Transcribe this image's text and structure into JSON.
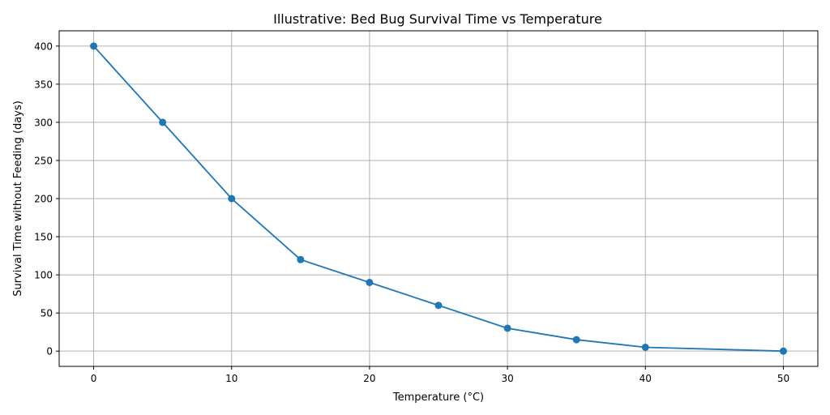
{
  "chart_data": {
    "type": "line",
    "title": "Illustrative: Bed Bug Survival Time vs Temperature",
    "xlabel": "Temperature (°C)",
    "ylabel": "Survival Time without Feeding (days)",
    "x": [
      0,
      5,
      10,
      15,
      20,
      25,
      30,
      35,
      40,
      50
    ],
    "series": [
      {
        "values": [
          400,
          300,
          200,
          120,
          90,
          60,
          30,
          15,
          5,
          0
        ]
      }
    ],
    "xlim": [
      -2.5,
      52.5
    ],
    "ylim": [
      -20,
      420
    ],
    "xticks": [
      0,
      10,
      20,
      30,
      40,
      50
    ],
    "yticks": [
      0,
      50,
      100,
      150,
      200,
      250,
      300,
      350,
      400
    ],
    "grid": true,
    "marker": "circle",
    "colors": {
      "line": "#1f77b4",
      "grid": "#b0b0b0"
    }
  }
}
